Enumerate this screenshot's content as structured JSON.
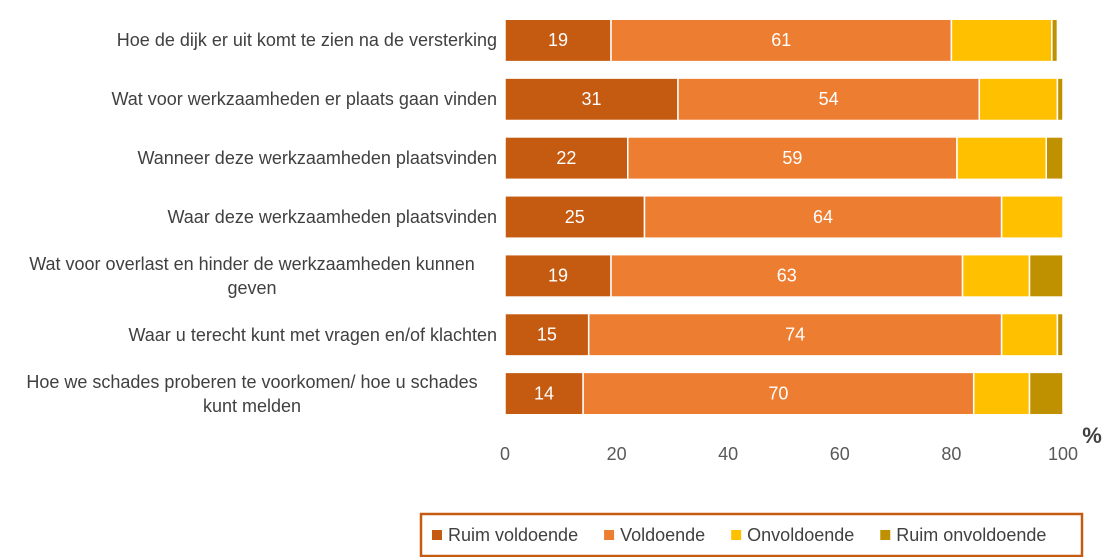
{
  "chart_data": {
    "type": "stacked-bar-horizontal",
    "categories": [
      "Hoe de dijk er uit komt te zien na de versterking",
      "Wat voor werkzaamheden er plaats gaan vinden",
      "Wanneer deze werkzaamheden plaatsvinden",
      "Waar deze werkzaamheden plaatsvinden",
      "Wat voor overlast en hinder de werkzaamheden kunnen geven",
      "Waar u terecht kunt met vragen en/of klachten",
      "Hoe we schades proberen te voorkomen/ hoe u schades kunt melden"
    ],
    "series": [
      {
        "name": "Ruim voldoende",
        "color": "#c55a11",
        "labels": true,
        "values": [
          19,
          31,
          22,
          25,
          19,
          15,
          14
        ]
      },
      {
        "name": "Voldoende",
        "color": "#ed7d31",
        "labels": true,
        "values": [
          61,
          54,
          59,
          64,
          63,
          74,
          70
        ]
      },
      {
        "name": "Onvoldoende",
        "color": "#ffc000",
        "labels": false,
        "values": [
          18,
          14,
          16,
          11,
          12,
          10,
          10
        ]
      },
      {
        "name": "Ruim onvoldoende",
        "color": "#bf9000",
        "labels": false,
        "values": [
          1,
          1,
          3,
          0,
          6,
          1,
          6
        ]
      }
    ],
    "x_label": "%",
    "xlim": [
      0,
      100
    ],
    "xticks": [
      0,
      20,
      40,
      60,
      80,
      100
    ],
    "legend": "bottom"
  }
}
